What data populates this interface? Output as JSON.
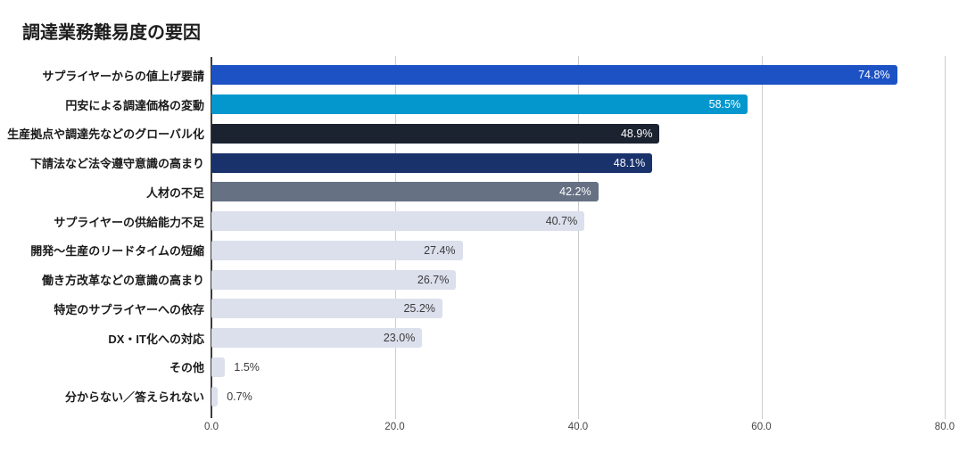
{
  "chart_data": {
    "type": "bar",
    "orientation": "horizontal",
    "title": "調達業務難易度の要因",
    "categories": [
      "サプライヤーからの値上げ要請",
      "円安による調達価格の変動",
      "生産拠点や調達先などのグローバル化",
      "下請法など法令遵守意識の高まり",
      "人材の不足",
      "サプライヤーの供給能力不足",
      "開発〜生産のリードタイムの短縮",
      "働き方改革などの意識の高まり",
      "特定のサプライヤーへの依存",
      "DX・IT化への対応",
      "その他",
      "分からない／答えられない"
    ],
    "values": [
      74.8,
      58.5,
      48.9,
      48.1,
      42.2,
      40.7,
      27.4,
      26.7,
      25.2,
      23.0,
      1.5,
      0.7
    ],
    "value_labels": [
      "74.8%",
      "58.5%",
      "48.9%",
      "48.1%",
      "42.2%",
      "40.7%",
      "27.4%",
      "26.7%",
      "25.2%",
      "23.0%",
      "1.5%",
      "0.7%"
    ],
    "bar_colors": [
      "#1c52c4",
      "#0397ce",
      "#1b2230",
      "#19326b",
      "#667183",
      "#dce0ed",
      "#dce0ed",
      "#dce0ed",
      "#dce0ed",
      "#dce0ed",
      "#dce0ed",
      "#dce0ed"
    ],
    "x_ticks": [
      "0.0",
      "20.0",
      "40.0",
      "60.0",
      "80.0"
    ],
    "xlim": [
      0,
      80
    ],
    "grid": true,
    "legend": false,
    "colors": {
      "background": "#ffffff",
      "gridline": "#cccccc",
      "baseline": "#3c3c3c",
      "value_text_light": "#ffffff",
      "value_text_dark": "#3b3b3b",
      "tick_text": "#444444",
      "title_text": "#1e1e1e",
      "category_text": "#1a1a1a"
    }
  }
}
